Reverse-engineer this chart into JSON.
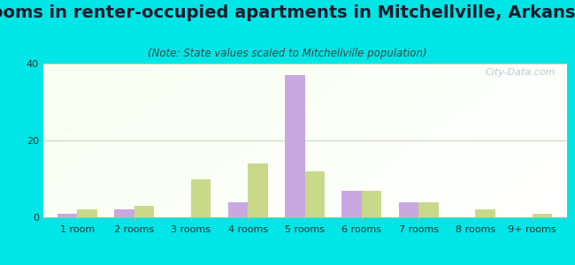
{
  "title": "Rooms in renter-occupied apartments in Mitchellville, Arkansas",
  "subtitle": "(Note: State values scaled to Mitchellville population)",
  "categories": [
    "1 room",
    "2 rooms",
    "3 rooms",
    "4 rooms",
    "5 rooms",
    "6 rooms",
    "7 rooms",
    "8 rooms",
    "9+ rooms"
  ],
  "mitchellville": [
    1,
    2,
    0,
    4,
    37,
    7,
    4,
    0,
    0
  ],
  "arkansas": [
    2,
    3,
    10,
    14,
    12,
    7,
    4,
    2,
    1
  ],
  "mitchellville_color": "#c9a8e0",
  "arkansas_color": "#c8d98a",
  "background_color": "#00e5e5",
  "ylim": [
    0,
    40
  ],
  "yticks": [
    0,
    20,
    40
  ],
  "bar_width": 0.35,
  "title_fontsize": 14,
  "subtitle_fontsize": 8.5,
  "tick_fontsize": 8,
  "legend_fontsize": 9.5,
  "watermark_text": "City-Data.com",
  "watermark_color": "#b0bfc8",
  "grid_color": "#c8d8b8",
  "axis_color": "#b0b8a8",
  "title_color": "#1a1a2e",
  "subtitle_color": "#444444"
}
